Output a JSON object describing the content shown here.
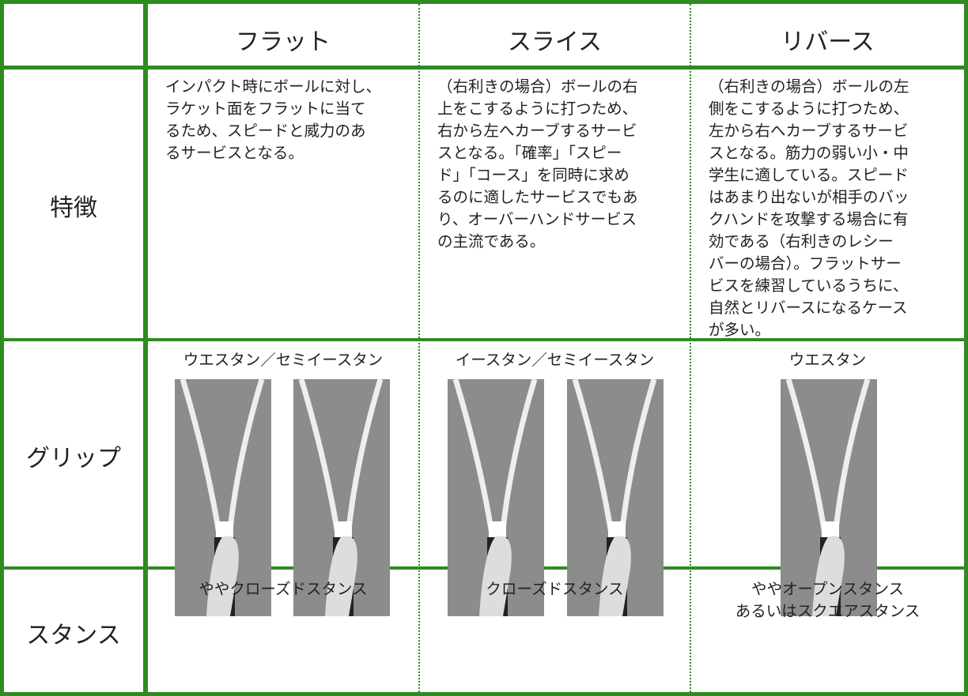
{
  "table": {
    "columns": [
      "フラット",
      "スライス",
      "リバース"
    ],
    "rows": [
      {
        "label": "特徴",
        "cells": [
          [
            "インパクト時にボールに対し、",
            "ラケット面をフラットに当て",
            "るため、スピードと威力のあ",
            "るサービスとなる。"
          ],
          [
            "（右利きの場合）ボールの右",
            "上をこするように打つため、",
            "右から左へカーブするサービ",
            "スとなる。「確率」「スピー",
            "ド」「コース」を同時に求め",
            "るのに適したサービスでもあ",
            "り、オーバーハンドサービス",
            "の主流である。"
          ],
          [
            "（右利きの場合）ボールの左",
            "側をこするように打つため、",
            "左から右へカーブするサービ",
            "スとなる。筋力の弱い小・中",
            "学生に適している。スピード",
            "はあまり出ないが相手のバッ",
            "クハンドを攻撃する場合に有",
            "効である（右利きのレシー",
            "バーの場合）。フラットサー",
            "ビスを練習しているうちに、",
            "自然とリバースになるケース",
            "が多い。"
          ]
        ]
      },
      {
        "label": "グリップ",
        "cells": [
          [
            "ウエスタン／セミイースタン"
          ],
          [
            "イースタン／セミイースタン"
          ],
          [
            "ウエスタン"
          ]
        ]
      },
      {
        "label": "スタンス",
        "cells": [
          [
            "ややクローズドスタンス"
          ],
          [
            "クローズドスタンス"
          ],
          [
            "ややオープンスタンス",
            "あるいはスクエアスタンス"
          ]
        ]
      }
    ]
  }
}
